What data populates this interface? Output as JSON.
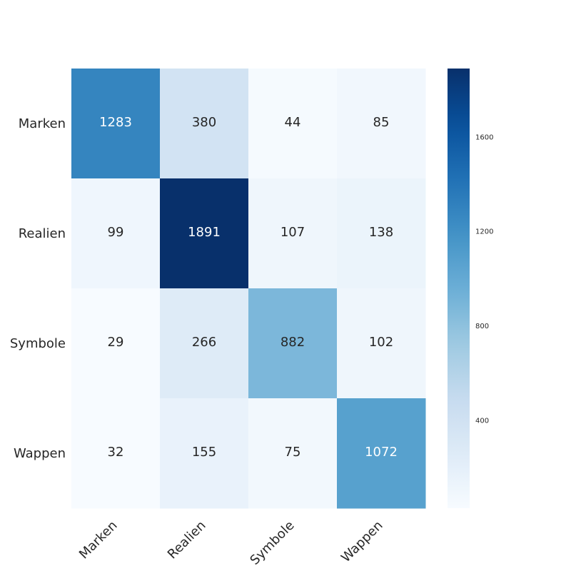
{
  "chart_data": {
    "type": "heatmap",
    "title": "",
    "xlabel": "",
    "ylabel": "",
    "rows": [
      "Marken",
      "Realien",
      "Symbole",
      "Wappen"
    ],
    "columns": [
      "Marken",
      "Realien",
      "Symbole",
      "Wappen"
    ],
    "values": [
      [
        1283,
        380,
        44,
        85
      ],
      [
        99,
        1891,
        107,
        138
      ],
      [
        29,
        266,
        882,
        102
      ],
      [
        32,
        155,
        75,
        1072
      ]
    ],
    "colormap": "Blues",
    "color_range": [
      29,
      1891
    ],
    "colorbar_ticks": [
      "400",
      "800",
      "1200",
      "1600"
    ],
    "colorbar_tick_values": [
      400,
      800,
      1200,
      1600
    ],
    "grid": false,
    "x_tick_rotation_deg": 45
  }
}
